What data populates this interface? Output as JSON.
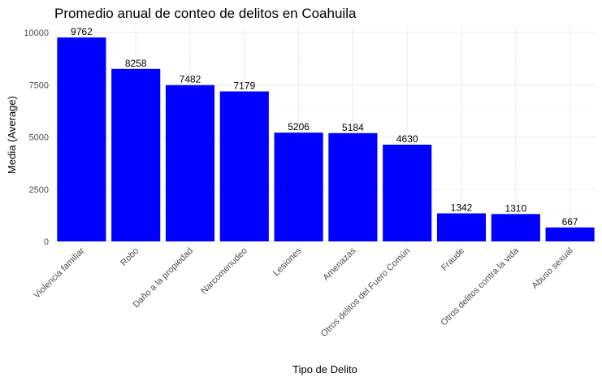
{
  "chart_data": {
    "type": "bar",
    "title": "Promedio anual de conteo de delitos en Coahuila",
    "xlabel": "Tipo de Delito",
    "ylabel": "Media (Average)",
    "categories": [
      "Violencia familiar",
      "Robo",
      "Daño a la propiedad",
      "Narcomenudeo",
      "Lesiones",
      "Amenazas",
      "Otros delitos del Fuero Común",
      "Fraude",
      "Otros delitos contra la vida",
      "Abuso sexual"
    ],
    "values": [
      9762,
      8258,
      7482,
      7179,
      5206,
      5184,
      4630,
      1342,
      1310,
      667
    ],
    "data_labels": [
      "9762",
      "8258",
      "7482",
      "7179",
      "5206",
      "5184",
      "4630",
      "1342",
      "1310",
      "667"
    ],
    "yticks": [
      0,
      2500,
      5000,
      7500,
      10000
    ],
    "ytick_labels": [
      "0",
      "2500",
      "5000",
      "7500",
      "10000"
    ],
    "ylim": [
      0,
      10250
    ],
    "bar_color": "#0000FF",
    "grid": true,
    "legend": "none"
  }
}
